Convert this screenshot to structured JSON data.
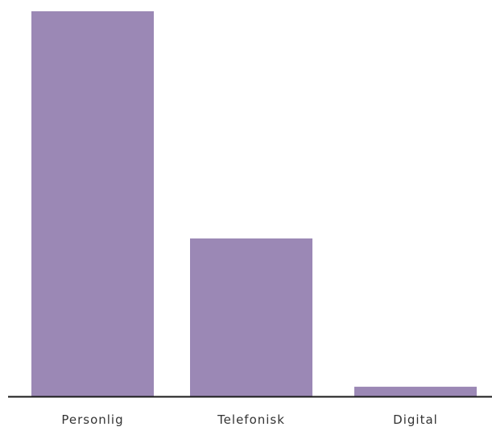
{
  "chart_data": {
    "type": "bar",
    "categories": [
      "Personlig",
      "Telefonisk",
      "Digital"
    ],
    "values": [
      100,
      41,
      2.5
    ],
    "ylim": [
      0,
      100
    ],
    "grid": false,
    "legend": "none",
    "bar_color": "#9b88b5",
    "axis_color": "#1a1a1a",
    "label_color": "#333333"
  }
}
